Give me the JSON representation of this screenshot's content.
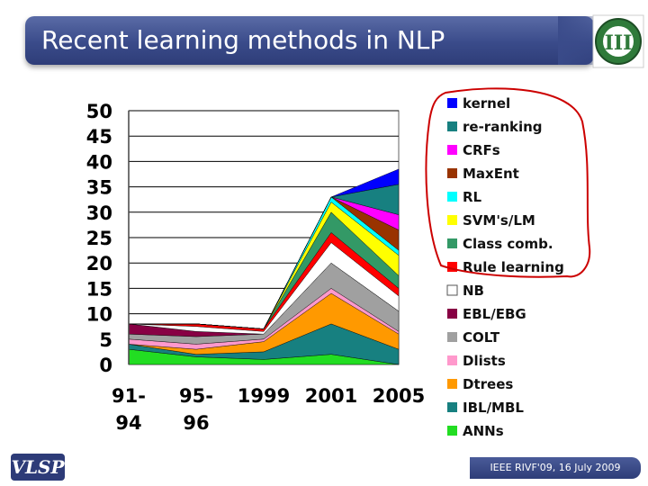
{
  "slide": {
    "title": "Recent learning methods in NLP",
    "footer": "IEEE RIVF'09, 16 July 2009",
    "logo_text": "VLSP",
    "emblem_text": "III"
  },
  "colors": {
    "title_bar": "#3a4b8a",
    "annotation": "#cc0000"
  },
  "chart_data": {
    "type": "area",
    "stacked": true,
    "title": "",
    "xlabel": "",
    "ylabel": "",
    "categories": [
      "91-94",
      "95-96",
      "1999",
      "2001",
      "2005"
    ],
    "category_lines": [
      [
        "91-",
        "94"
      ],
      [
        "95-",
        "96"
      ],
      [
        "1999"
      ],
      [
        "2001"
      ],
      [
        "2005"
      ]
    ],
    "ylim": [
      0,
      50
    ],
    "yticks": [
      0,
      5,
      10,
      15,
      20,
      25,
      30,
      35,
      40,
      45,
      50
    ],
    "grid": true,
    "legend_position": "right",
    "series": [
      {
        "name": "ANNs",
        "color": "#22dd22",
        "values": [
          3,
          1.5,
          1,
          2,
          0
        ]
      },
      {
        "name": "IBL/MBL",
        "color": "#178080",
        "values": [
          1,
          0.5,
          1.5,
          6,
          3
        ]
      },
      {
        "name": "Dtrees",
        "color": "#ff9900",
        "values": [
          0,
          1,
          2,
          6,
          3
        ]
      },
      {
        "name": "Dlists",
        "color": "#ff99cc",
        "values": [
          1,
          1,
          0.5,
          1,
          0.5
        ]
      },
      {
        "name": "COLT",
        "color": "#a0a0a0",
        "values": [
          1,
          1.5,
          1,
          5,
          4
        ]
      },
      {
        "name": "EBL/EBG",
        "color": "#880044",
        "values": [
          2,
          1,
          0,
          0,
          0
        ]
      },
      {
        "name": "NB",
        "color": "#ffffff",
        "values": [
          0,
          1,
          0.5,
          4,
          3
        ]
      },
      {
        "name": "Rule learning",
        "color": "#ff0000",
        "values": [
          0,
          0.5,
          0.5,
          2,
          1.5
        ]
      },
      {
        "name": "Class comb.",
        "color": "#339966",
        "values": [
          0,
          0,
          0,
          4,
          2.5
        ]
      },
      {
        "name": "SVM's/LM",
        "color": "#ffff00",
        "values": [
          0,
          0,
          0,
          2,
          4
        ]
      },
      {
        "name": "RL",
        "color": "#00ffff",
        "values": [
          0,
          0,
          0,
          1,
          1
        ]
      },
      {
        "name": "MaxEnt",
        "color": "#993300",
        "values": [
          0,
          0,
          0,
          0,
          4
        ]
      },
      {
        "name": "CRFs",
        "color": "#ff00ff",
        "values": [
          0,
          0,
          0,
          0,
          3
        ]
      },
      {
        "name": "re-ranking",
        "color": "#178080",
        "values": [
          0,
          0,
          0,
          0,
          6
        ]
      },
      {
        "name": "kernel",
        "color": "#0000ff",
        "values": [
          0,
          0,
          0,
          0,
          3
        ]
      }
    ]
  }
}
